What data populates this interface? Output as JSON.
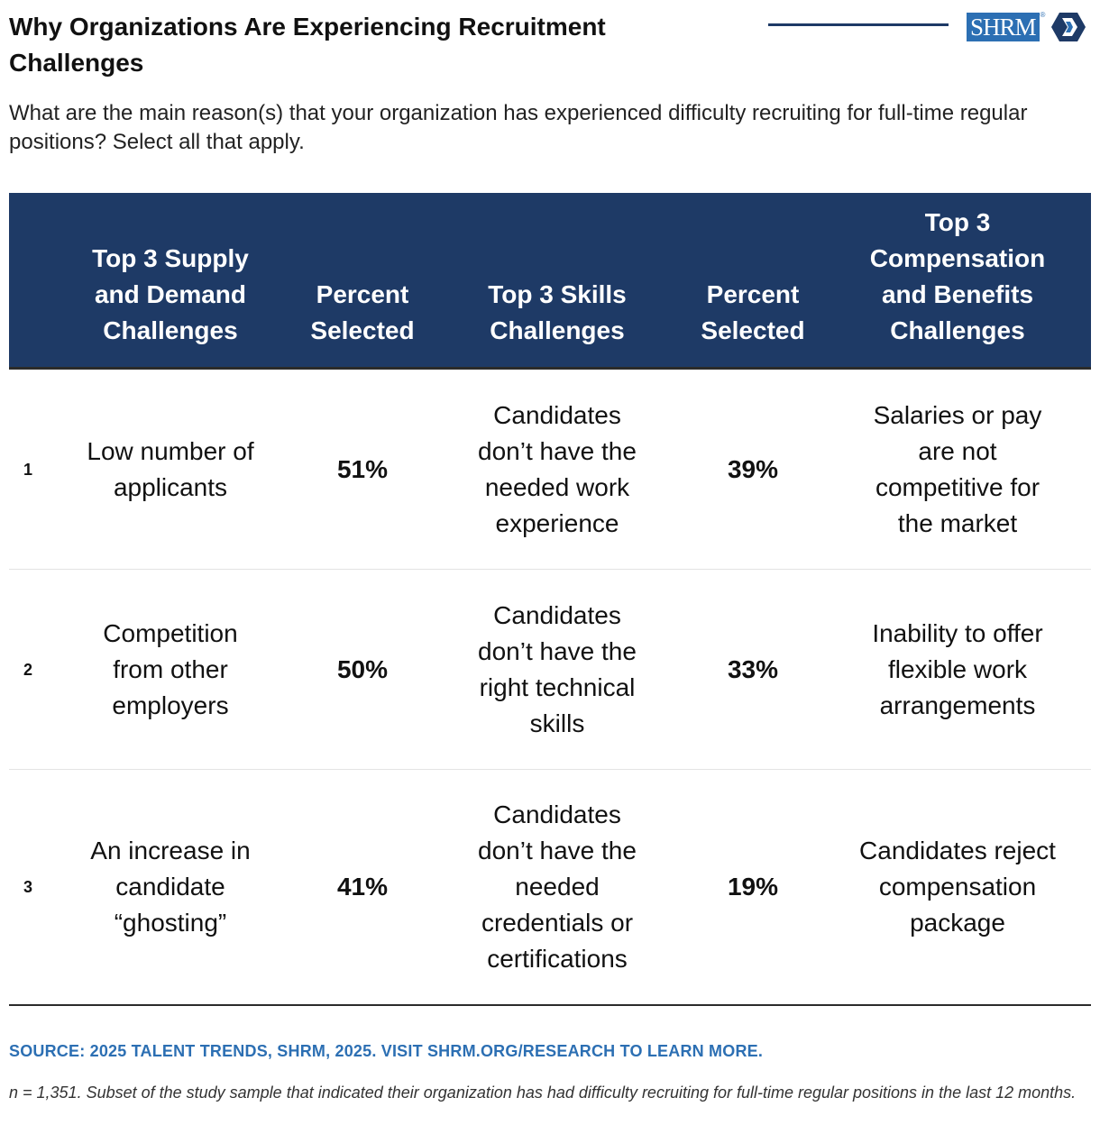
{
  "header": {
    "title": "Why Organizations Are Experiencing Recruitment Challenges",
    "subtitle": "What are the main reason(s) that your organization has experienced difficulty recruiting for full-time regular positions? Select all that apply.",
    "logo_text": "SHRM",
    "logo_mark": "®"
  },
  "colors": {
    "navy": "#1e3a66",
    "brand_blue": "#2c6fb3"
  },
  "chart_data": {
    "type": "table",
    "title": "Why Organizations Are Experiencing Recruitment Challenges",
    "columns": [
      "",
      "Top 3 Supply and Demand Challenges",
      "Percent Selected",
      "Top 3 Skills Challenges",
      "Percent Selected",
      "Top 3 Compensation and Benefits Challenges"
    ],
    "rows": [
      {
        "rank": "1",
        "supply": "Low number of applicants",
        "supply_pct": "51%",
        "skills": "Candidates don’t have the needed work experience",
        "skills_pct": "39%",
        "comp": "Salaries or pay are not competitive for the market"
      },
      {
        "rank": "2",
        "supply": "Competition from other employers",
        "supply_pct": "50%",
        "skills": "Candidates don’t have the right technical skills",
        "skills_pct": "33%",
        "comp": "Inability to offer flexible work arrangements"
      },
      {
        "rank": "3",
        "supply": "An increase in candidate “ghosting”",
        "supply_pct": "41%",
        "skills": "Candidates don’t have the needed credentials or certifications",
        "skills_pct": "19%",
        "comp": "Candidates reject compensation package"
      }
    ]
  },
  "footer": {
    "source": "SOURCE: 2025 TALENT TRENDS, SHRM, 2025. VISIT SHRM.ORG/RESEARCH TO LEARN MORE.",
    "note": "n = 1,351. Subset of the study sample that indicated their organization has had difficulty recruiting for full-time regular positions in the last 12 months."
  }
}
